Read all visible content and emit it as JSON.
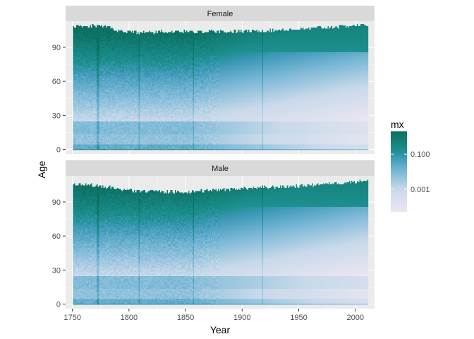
{
  "chart_data": {
    "type": "heatmap",
    "title": "",
    "xlabel": "Year",
    "ylabel": "Age",
    "xlim": [
      1744,
      2017
    ],
    "ylim": [
      -4,
      113
    ],
    "x_ticks": [
      1750,
      1800,
      1850,
      1900,
      1950,
      2000
    ],
    "y_ticks": [
      0,
      30,
      60,
      90
    ],
    "grid": true,
    "legend": {
      "title": "mx",
      "scale": "log10",
      "position": "right",
      "range": [
        5e-05,
        2
      ],
      "ticks": [
        {
          "value": 0.1,
          "label": "0.100"
        },
        {
          "value": 0.001,
          "label": "0.001"
        }
      ],
      "colors": [
        "#ebe6f2",
        "#c3d6e8",
        "#5aaecd",
        "#1c8f8d",
        "#0b6f62"
      ]
    },
    "panels": [
      {
        "strip": "Female",
        "year_range": [
          1751,
          2011
        ],
        "age_range": [
          0,
          110
        ],
        "max_age_profile": [
          {
            "year": 1751,
            "age": 108
          },
          {
            "year": 1775,
            "age": 109
          },
          {
            "year": 1800,
            "age": 103
          },
          {
            "year": 1850,
            "age": 104
          },
          {
            "year": 1900,
            "age": 104
          },
          {
            "year": 1950,
            "age": 106
          },
          {
            "year": 2000,
            "age": 109
          },
          {
            "year": 2011,
            "age": 110
          }
        ]
      },
      {
        "strip": "Male",
        "year_range": [
          1751,
          2011
        ],
        "age_range": [
          0,
          110
        ],
        "max_age_profile": [
          {
            "year": 1751,
            "age": 106
          },
          {
            "year": 1775,
            "age": 104
          },
          {
            "year": 1800,
            "age": 100
          },
          {
            "year": 1850,
            "age": 99
          },
          {
            "year": 1900,
            "age": 102
          },
          {
            "year": 1950,
            "age": 104
          },
          {
            "year": 2000,
            "age": 108
          },
          {
            "year": 2011,
            "age": 109
          }
        ]
      }
    ]
  }
}
